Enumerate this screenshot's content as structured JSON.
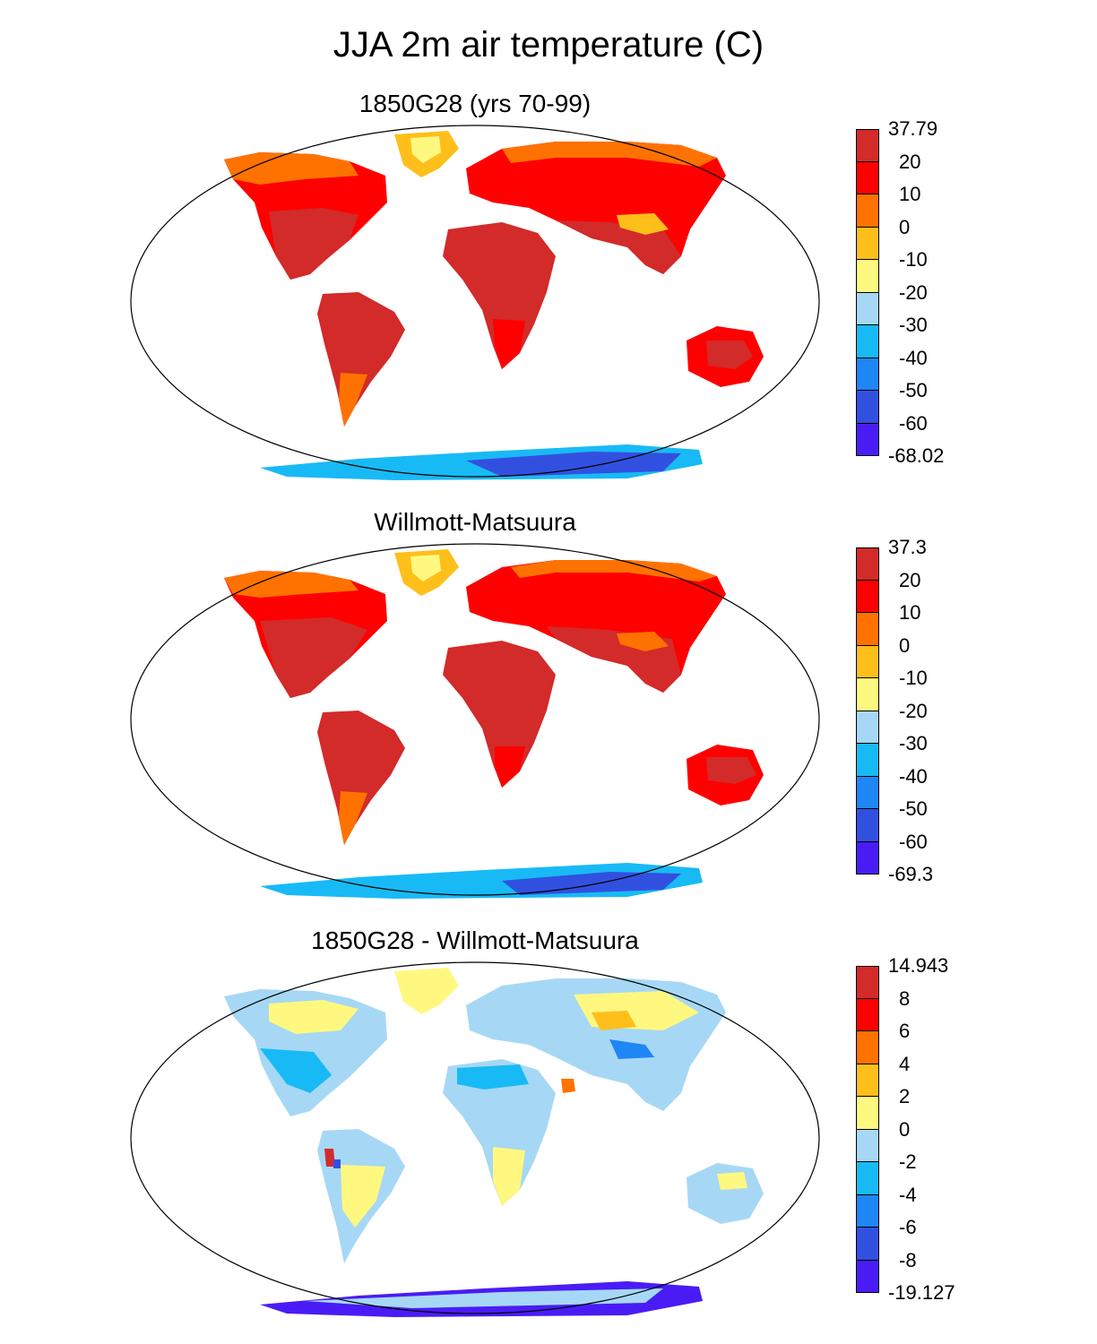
{
  "title": "JJA 2m air temperature (C)",
  "panels": [
    {
      "name": "model",
      "title": "1850G28 (yrs 70-99)",
      "colorbar": {
        "labels": [
          "37.79",
          "20",
          "10",
          "0",
          "-10",
          "-20",
          "-30",
          "-40",
          "-50",
          "-60",
          "-68.02"
        ],
        "colors": [
          "#d32a2a",
          "#ff0000",
          "#ff7200",
          "#ffbf1b",
          "#fff880",
          "#a6d8f5",
          "#18baf5",
          "#1f86f5",
          "#3250e0",
          "#4a1cf5"
        ]
      }
    },
    {
      "name": "observed",
      "title": "Willmott-Matsuura",
      "colorbar": {
        "labels": [
          "37.3",
          "20",
          "10",
          "0",
          "-10",
          "-20",
          "-30",
          "-40",
          "-50",
          "-60",
          "-69.3"
        ],
        "colors": [
          "#d32a2a",
          "#ff0000",
          "#ff7200",
          "#ffbf1b",
          "#fff880",
          "#a6d8f5",
          "#18baf5",
          "#1f86f5",
          "#3250e0",
          "#4a1cf5"
        ]
      }
    },
    {
      "name": "difference",
      "title": "1850G28 - Willmott-Matsuura",
      "colorbar": {
        "labels": [
          "14.943",
          "8",
          "6",
          "4",
          "2",
          "0",
          "-2",
          "-4",
          "-6",
          "-8",
          "-19.127"
        ],
        "colors": [
          "#d32a2a",
          "#ff0000",
          "#ff7200",
          "#ffbf1b",
          "#fff880",
          "#a6d8f5",
          "#18baf5",
          "#1f86f5",
          "#3250e0",
          "#4a1cf5"
        ]
      }
    }
  ]
}
